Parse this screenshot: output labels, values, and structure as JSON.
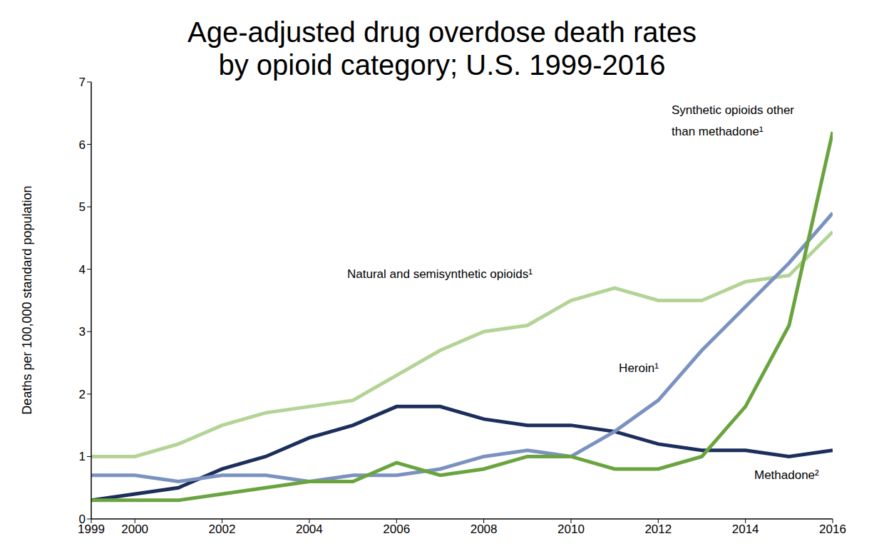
{
  "chart_data": {
    "type": "line",
    "title": "Age-adjusted drug overdose death rates by opioid category; U.S. 1999-2016",
    "y_label": "Deaths per 100,000 standard population",
    "x": [
      1999,
      2000,
      2001,
      2002,
      2003,
      2004,
      2005,
      2006,
      2007,
      2008,
      2009,
      2010,
      2011,
      2012,
      2013,
      2014,
      2015,
      2016
    ],
    "xlim": [
      1999,
      2016
    ],
    "xticks": [
      1999,
      2000,
      2002,
      2004,
      2006,
      2008,
      2010,
      2012,
      2014,
      2016
    ],
    "ylim": [
      0,
      7
    ],
    "yticks": [
      0,
      1,
      2,
      3,
      4,
      5,
      6,
      7
    ],
    "grid": false,
    "series": [
      {
        "name": "Natural and semisynthetic opioids¹",
        "color": "#b3d496",
        "values": [
          1.0,
          1.0,
          1.2,
          1.5,
          1.7,
          1.8,
          1.9,
          2.3,
          2.7,
          3.0,
          3.1,
          3.5,
          3.7,
          3.5,
          3.5,
          3.8,
          3.9,
          4.6
        ]
      },
      {
        "name": "Methadone²",
        "color": "#1c2f5c",
        "values": [
          0.3,
          0.4,
          0.5,
          0.8,
          1.0,
          1.3,
          1.5,
          1.8,
          1.8,
          1.6,
          1.5,
          1.5,
          1.4,
          1.2,
          1.1,
          1.1,
          1.0,
          1.1
        ]
      },
      {
        "name": "Heroin¹",
        "color": "#7b92c0",
        "values": [
          0.7,
          0.7,
          0.6,
          0.7,
          0.7,
          0.6,
          0.7,
          0.7,
          0.8,
          1.0,
          1.1,
          1.0,
          1.4,
          1.9,
          2.7,
          3.4,
          4.1,
          4.9
        ]
      },
      {
        "name": "Synthetic opioids other than methadone¹",
        "color": "#6aa43f",
        "values": [
          0.3,
          0.3,
          0.3,
          0.4,
          0.5,
          0.6,
          0.6,
          0.9,
          0.7,
          0.8,
          1.0,
          1.0,
          0.8,
          0.8,
          1.0,
          1.8,
          3.1,
          6.2
        ]
      }
    ]
  }
}
